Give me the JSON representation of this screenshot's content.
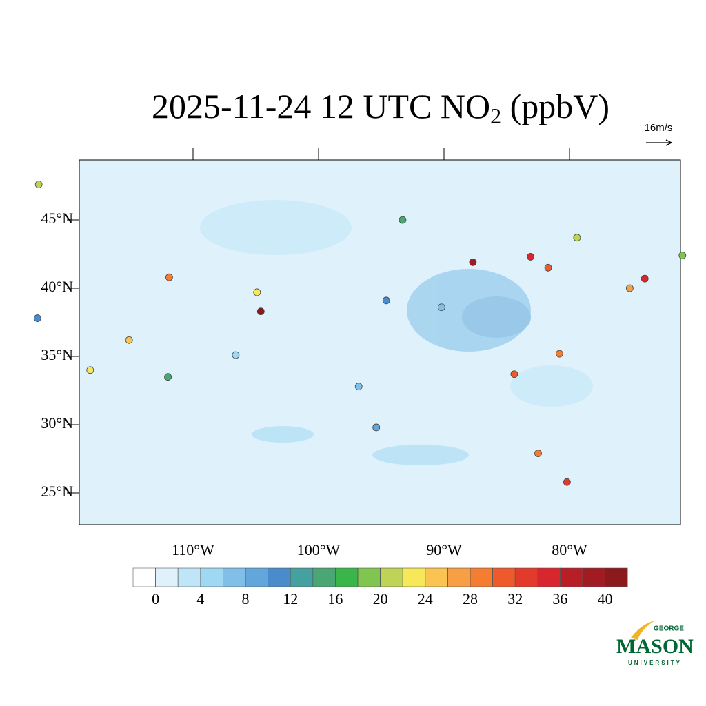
{
  "map": {
    "title": {
      "main": "2025-11-24 12 UTC NO",
      "sub": "2",
      "unit": " (ppbV)"
    },
    "wind_reference": "16m/s",
    "lonticks": [
      {
        "value": -110,
        "label": "110°W"
      },
      {
        "value": -100,
        "label": "100°W"
      },
      {
        "value": -90,
        "label": "90°W"
      },
      {
        "value": -80,
        "label": "80°W"
      }
    ],
    "latticks": [
      {
        "value": 45,
        "label": "45°N"
      },
      {
        "value": 40,
        "label": "40°N"
      },
      {
        "value": 35,
        "label": "35°N"
      },
      {
        "value": 30,
        "label": "30°N"
      },
      {
        "value": 25,
        "label": "25°N"
      }
    ],
    "colorbar": {
      "levels": [
        0,
        2,
        4,
        6,
        8,
        10,
        12,
        14,
        16,
        18,
        20,
        22,
        24,
        26,
        28,
        30,
        32,
        34,
        36,
        38,
        40
      ],
      "ticks": [
        0,
        4,
        8,
        12,
        16,
        20,
        24,
        28,
        32,
        36,
        40
      ],
      "colors": [
        "#ffffff",
        "#dff2fb",
        "#bfe6f7",
        "#9fd8f3",
        "#80bfe8",
        "#62a6dc",
        "#4a8ccb",
        "#45a0a0",
        "#4aa774",
        "#3ab54a",
        "#80c550",
        "#bfd356",
        "#f6e858",
        "#fbc352",
        "#f79f45",
        "#f47d31",
        "#ef5a2d",
        "#e33b2b",
        "#d7262e",
        "#b81e26",
        "#a01c22",
        "#8b1a1d"
      ]
    },
    "stations": [
      {
        "lon": -87.7,
        "lat": 41.9,
        "value": 38
      },
      {
        "lon": -83.1,
        "lat": 42.3,
        "value": 34
      },
      {
        "lon": -81.7,
        "lat": 41.5,
        "value": 30
      },
      {
        "lon": -74.0,
        "lat": 40.7,
        "value": 34
      },
      {
        "lon": -75.2,
        "lat": 40.0,
        "value": 26
      },
      {
        "lon": -104.9,
        "lat": 39.7,
        "value": 22
      },
      {
        "lon": -104.6,
        "lat": 38.3,
        "value": 40
      },
      {
        "lon": -111.9,
        "lat": 40.8,
        "value": 28
      },
      {
        "lon": -118.2,
        "lat": 34.0,
        "value": 22
      },
      {
        "lon": -112.0,
        "lat": 33.5,
        "value": 14
      },
      {
        "lon": -115.1,
        "lat": 36.2,
        "value": 24
      },
      {
        "lon": -122.3,
        "lat": 47.6,
        "value": 20
      },
      {
        "lon": -122.4,
        "lat": 37.8,
        "value": 10
      },
      {
        "lon": -84.4,
        "lat": 33.7,
        "value": 30
      },
      {
        "lon": -80.2,
        "lat": 25.8,
        "value": 32
      },
      {
        "lon": -82.5,
        "lat": 27.9,
        "value": 28
      },
      {
        "lon": -95.4,
        "lat": 29.8,
        "value": 8
      },
      {
        "lon": -94.6,
        "lat": 39.1,
        "value": 10
      },
      {
        "lon": -93.3,
        "lat": 45.0,
        "value": 14
      },
      {
        "lon": -71.0,
        "lat": 42.4,
        "value": 18
      },
      {
        "lon": -79.4,
        "lat": 43.7,
        "value": 20
      },
      {
        "lon": -80.8,
        "lat": 35.2,
        "value": 28
      },
      {
        "lon": -90.2,
        "lat": 38.6,
        "value": 6
      },
      {
        "lon": -96.8,
        "lat": 32.8,
        "value": 6
      },
      {
        "lon": -106.6,
        "lat": 35.1,
        "value": 4
      }
    ],
    "logo": {
      "top": "GEORGE",
      "main": "MASON",
      "bottom": "UNIVERSITY"
    }
  }
}
